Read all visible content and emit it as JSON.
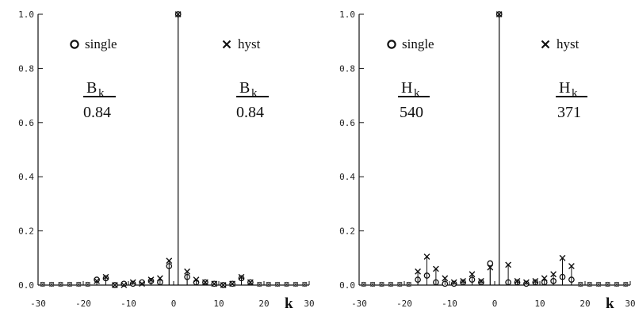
{
  "chart_data": [
    {
      "type": "scatter",
      "title": "",
      "xlabel": "k",
      "ylabel": "",
      "xlim": [
        -30,
        30
      ],
      "ylim": [
        0,
        1.0
      ],
      "x_ticks": [
        "-30",
        "-20",
        "-10",
        "0",
        "10",
        "20",
        "30"
      ],
      "y_ticks": [
        "0.0",
        "0.2",
        "0.4",
        "0.6",
        "0.8",
        "1.0"
      ],
      "grid": false,
      "legend_position": "top",
      "legend": {
        "single": {
          "label": "single",
          "num": "B",
          "sub": "k",
          "den": "0.84"
        },
        "hyst": {
          "label": "hyst",
          "num": "B",
          "sub": "k",
          "den": "0.84"
        }
      },
      "series": [
        {
          "name": "single",
          "marker": "circle",
          "x": [
            -17,
            -15,
            -13,
            -11,
            -9,
            -7,
            -5,
            -3,
            -1,
            1,
            3,
            5,
            7,
            9,
            11,
            13,
            15,
            17
          ],
          "values": [
            0.02,
            0.025,
            0.0,
            0.005,
            0.005,
            0.01,
            0.015,
            0.01,
            0.07,
            1.0,
            0.03,
            0.01,
            0.01,
            0.005,
            0.0,
            0.005,
            0.025,
            0.01
          ]
        },
        {
          "name": "hyst",
          "marker": "x",
          "x": [
            -17,
            -15,
            -13,
            -11,
            -9,
            -7,
            -5,
            -3,
            -1,
            1,
            3,
            5,
            7,
            9,
            11,
            13,
            15,
            17
          ],
          "values": [
            0.015,
            0.03,
            0.0,
            0.0,
            0.01,
            0.005,
            0.02,
            0.025,
            0.09,
            1.0,
            0.05,
            0.02,
            0.01,
            0.005,
            0.0,
            0.005,
            0.03,
            0.01
          ]
        }
      ]
    },
    {
      "type": "scatter",
      "title": "",
      "xlabel": "k",
      "ylabel": "",
      "xlim": [
        -30,
        30
      ],
      "ylim": [
        0,
        1.0
      ],
      "x_ticks": [
        "-30",
        "-20",
        "-10",
        "0",
        "10",
        "20",
        "30"
      ],
      "y_ticks": [
        "0.0",
        "0.2",
        "0.4",
        "0.6",
        "0.8",
        "1.0"
      ],
      "grid": false,
      "legend_position": "top",
      "legend": {
        "single": {
          "label": "single",
          "num": "H",
          "sub": "k",
          "den": "540"
        },
        "hyst": {
          "label": "hyst",
          "num": "H",
          "sub": "k",
          "den": "371"
        }
      },
      "series": [
        {
          "name": "single",
          "marker": "circle",
          "x": [
            -17,
            -15,
            -13,
            -11,
            -9,
            -7,
            -5,
            -3,
            -1,
            1,
            3,
            5,
            7,
            9,
            11,
            13,
            15,
            17
          ],
          "values": [
            0.02,
            0.035,
            0.01,
            0.005,
            0.005,
            0.01,
            0.02,
            0.01,
            0.08,
            1.0,
            0.01,
            0.01,
            0.005,
            0.01,
            0.01,
            0.015,
            0.03,
            0.02
          ]
        },
        {
          "name": "hyst",
          "marker": "x",
          "x": [
            -17,
            -15,
            -13,
            -11,
            -9,
            -7,
            -5,
            -3,
            -1,
            1,
            3,
            5,
            7,
            9,
            11,
            13,
            15,
            17
          ],
          "values": [
            0.05,
            0.105,
            0.06,
            0.025,
            0.01,
            0.015,
            0.04,
            0.015,
            0.065,
            1.0,
            0.075,
            0.015,
            0.01,
            0.015,
            0.025,
            0.04,
            0.1,
            0.07
          ]
        }
      ]
    }
  ]
}
